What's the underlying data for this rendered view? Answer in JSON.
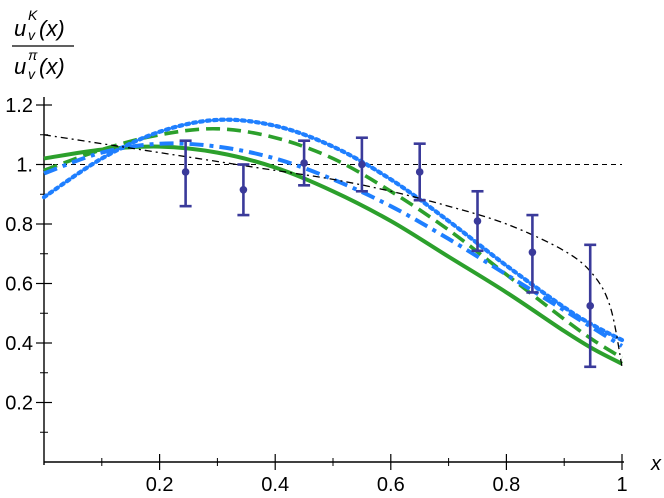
{
  "chart_data": {
    "type": "line",
    "xlabel": "x",
    "ylabel": {
      "num_base": "u",
      "num_sup": "K",
      "num_sub": "v",
      "num_arg": "(x)",
      "den_base": "u",
      "den_sup": "π",
      "den_sub": "v",
      "den_arg": "(x)"
    },
    "xlim": [
      0,
      1
    ],
    "ylim": [
      0,
      1.2
    ],
    "x_ticks": [
      {
        "value": 0.2,
        "label": "0.2"
      },
      {
        "value": 0.4,
        "label": "0.4"
      },
      {
        "value": 0.6,
        "label": "0.6"
      },
      {
        "value": 0.8,
        "label": "0.8"
      },
      {
        "value": 1.0,
        "label": "1"
      }
    ],
    "y_ticks": [
      {
        "value": 0.2,
        "label": "0.2"
      },
      {
        "value": 0.4,
        "label": "0.4"
      },
      {
        "value": 0.6,
        "label": "0.6"
      },
      {
        "value": 0.8,
        "label": "0.8"
      },
      {
        "value": 1.0,
        "label": "1."
      },
      {
        "value": 1.2,
        "label": "1.2"
      }
    ],
    "x_minor_ticks": [
      0.1,
      0.3,
      0.5,
      0.7,
      0.9
    ],
    "y_minor_ticks": [
      0.1,
      0.3,
      0.5,
      0.7,
      0.9,
      1.1
    ],
    "reference_line": {
      "y": 1.0,
      "style": "dashed",
      "color": "#000000"
    },
    "series": [
      {
        "style": "solid",
        "color": "#2ca02c",
        "x": [
          0,
          0.1,
          0.2,
          0.3,
          0.4,
          0.5,
          0.6,
          0.7,
          0.8,
          0.9,
          0.95,
          1.0
        ],
        "y": [
          1.02,
          1.05,
          1.06,
          1.04,
          0.99,
          0.91,
          0.81,
          0.69,
          0.57,
          0.44,
          0.38,
          0.33
        ]
      },
      {
        "style": "dashed",
        "color": "#2ca02c",
        "x": [
          0,
          0.1,
          0.2,
          0.3,
          0.4,
          0.5,
          0.6,
          0.7,
          0.8,
          0.9,
          0.95,
          1.0
        ],
        "y": [
          0.98,
          1.05,
          1.1,
          1.12,
          1.09,
          1.02,
          0.91,
          0.78,
          0.63,
          0.48,
          0.41,
          0.35
        ]
      },
      {
        "style": "dashdot",
        "color": "#1f7fff",
        "x": [
          0,
          0.1,
          0.2,
          0.3,
          0.4,
          0.5,
          0.6,
          0.7,
          0.8,
          0.9,
          0.95,
          1.0
        ],
        "y": [
          0.97,
          1.04,
          1.07,
          1.06,
          1.02,
          0.95,
          0.86,
          0.75,
          0.63,
          0.51,
          0.45,
          0.39
        ]
      },
      {
        "style": "dotted",
        "color": "#1f7fff",
        "x": [
          0,
          0.1,
          0.2,
          0.3,
          0.4,
          0.5,
          0.6,
          0.7,
          0.8,
          0.9,
          0.95,
          1.0
        ],
        "y": [
          0.89,
          1.02,
          1.11,
          1.15,
          1.13,
          1.06,
          0.95,
          0.81,
          0.66,
          0.52,
          0.46,
          0.41
        ]
      },
      {
        "style": "dashdot-thin",
        "color": "#000000",
        "x": [
          0,
          0.1,
          0.2,
          0.3,
          0.4,
          0.5,
          0.6,
          0.7,
          0.8,
          0.9,
          0.95,
          0.98,
          1.0
        ],
        "y": [
          1.1,
          1.07,
          1.04,
          1.01,
          0.98,
          0.95,
          0.91,
          0.86,
          0.8,
          0.71,
          0.63,
          0.52,
          0.32
        ]
      }
    ],
    "points": {
      "color": "#3a3a9a",
      "data": [
        {
          "x": 0.245,
          "y": 0.975,
          "ylow": 0.86,
          "yhigh": 1.08
        },
        {
          "x": 0.345,
          "y": 0.915,
          "ylow": 0.83,
          "yhigh": 1.0
        },
        {
          "x": 0.45,
          "y": 1.005,
          "ylow": 0.93,
          "yhigh": 1.08
        },
        {
          "x": 0.55,
          "y": 1.0,
          "ylow": 0.91,
          "yhigh": 1.09
        },
        {
          "x": 0.65,
          "y": 0.975,
          "ylow": 0.88,
          "yhigh": 1.07
        },
        {
          "x": 0.75,
          "y": 0.81,
          "ylow": 0.71,
          "yhigh": 0.91
        },
        {
          "x": 0.845,
          "y": 0.705,
          "ylow": 0.57,
          "yhigh": 0.83
        },
        {
          "x": 0.945,
          "y": 0.525,
          "ylow": 0.32,
          "yhigh": 0.73
        }
      ]
    }
  }
}
